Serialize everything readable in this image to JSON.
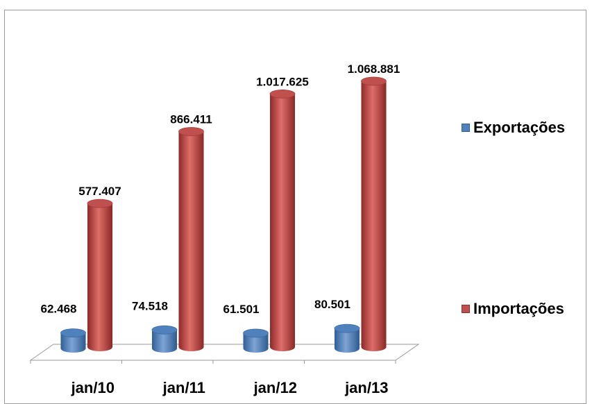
{
  "chart_data": {
    "type": "bar",
    "style": "3d-cylinder",
    "categories": [
      "jan/10",
      "jan/11",
      "jan/12",
      "jan/13"
    ],
    "series": [
      {
        "name": "Exportações",
        "color": "#4f81bd",
        "values": [
          62468,
          74518,
          61501,
          80501
        ],
        "labels": [
          "62.468",
          "74.518",
          "61.501",
          "80.501"
        ]
      },
      {
        "name": "Importações",
        "color": "#c0504d",
        "values": [
          577407,
          866411,
          1017625,
          1068881
        ],
        "labels": [
          "577.407",
          "866.411",
          "1.017.625",
          "1.068.881"
        ]
      }
    ],
    "ylim": [
      0,
      1068881
    ],
    "grid": false,
    "legend_position": "right"
  }
}
